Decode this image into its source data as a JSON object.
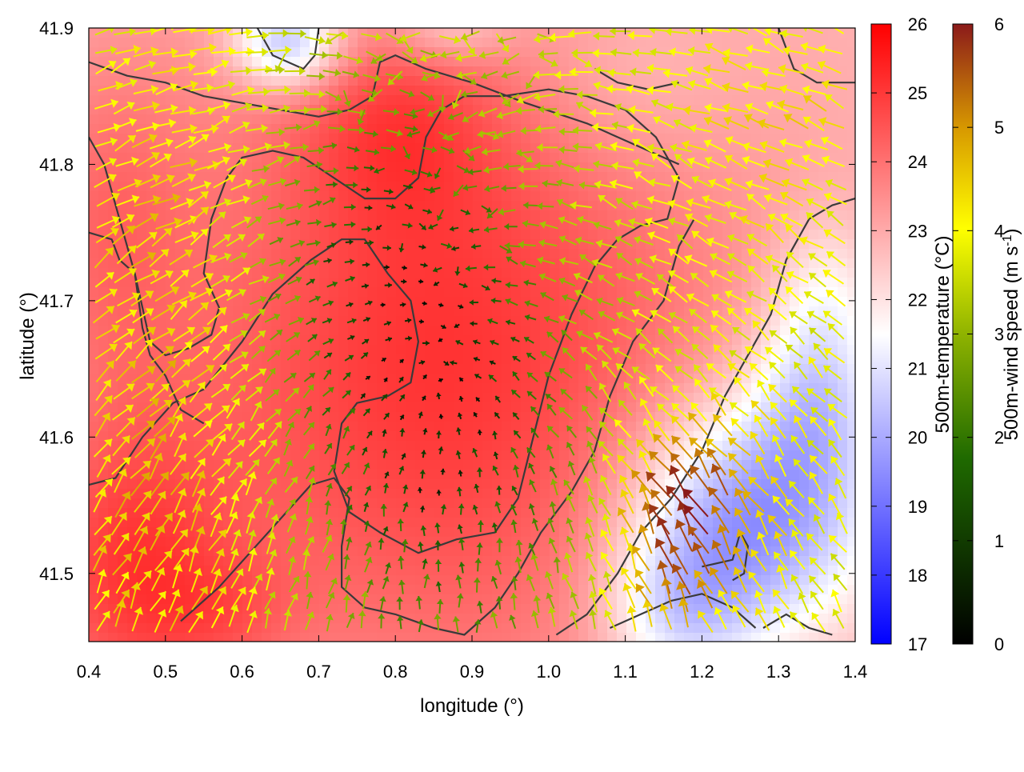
{
  "chart_data": {
    "type": "heatmap",
    "title": "",
    "xlabel": "longitude (°)",
    "ylabel": "latitude (°)",
    "xlim": [
      0.4,
      1.4
    ],
    "ylim": [
      41.45,
      41.9
    ],
    "x_ticks": [
      "0.4",
      "0.5",
      "0.6",
      "0.7",
      "0.8",
      "0.9",
      "1.0",
      "1.1",
      "1.2",
      "1.3",
      "1.4"
    ],
    "y_ticks": [
      "41.5",
      "41.6",
      "41.7",
      "41.8",
      "41.9"
    ],
    "x_tick_values": [
      0.4,
      0.5,
      0.6,
      0.7,
      0.8,
      0.9,
      1.0,
      1.1,
      1.2,
      1.3,
      1.4
    ],
    "y_tick_values": [
      41.5,
      41.6,
      41.7,
      41.8,
      41.9
    ],
    "temperature_colorbar": {
      "label": "500m-temperature (°C)",
      "range": [
        17,
        26
      ],
      "ticks": [
        "17",
        "18",
        "19",
        "20",
        "21",
        "22",
        "23",
        "24",
        "25",
        "26"
      ],
      "tick_values": [
        17,
        18,
        19,
        20,
        21,
        22,
        23,
        24,
        25,
        26
      ],
      "colors": [
        "#0000ff",
        "#ffffff",
        "#ff0000"
      ]
    },
    "wind_colorbar": {
      "label_main": "500m-wind speed (m s",
      "label_sup": "-1",
      "label_end": ")",
      "range": [
        0,
        6
      ],
      "ticks": [
        "0",
        "1",
        "2",
        "3",
        "4",
        "5",
        "6"
      ],
      "tick_values": [
        0,
        1,
        2,
        3,
        4,
        5,
        6
      ],
      "colors": [
        "#000000",
        "#1f6a00",
        "#8fb300",
        "#ffff00",
        "#d89a00",
        "#8b1a1a"
      ]
    },
    "temperature_field": {
      "background": 22.8,
      "features": [
        {
          "lon": 0.86,
          "lat": 41.66,
          "sx": 0.26,
          "sy": 0.18,
          "amp": 2.3
        },
        {
          "lon": 0.45,
          "lat": 41.5,
          "sx": 0.1,
          "sy": 0.08,
          "amp": 1.8
        },
        {
          "lon": 0.42,
          "lat": 41.76,
          "sx": 0.08,
          "sy": 0.09,
          "amp": 1.0
        },
        {
          "lon": 0.8,
          "lat": 41.83,
          "sx": 0.09,
          "sy": 0.05,
          "amp": 0.9
        },
        {
          "lon": 1.26,
          "lat": 41.54,
          "sx": 0.11,
          "sy": 0.06,
          "amp": -3.6
        },
        {
          "lon": 1.35,
          "lat": 41.63,
          "sx": 0.06,
          "sy": 0.05,
          "amp": -2.0
        },
        {
          "lon": 1.17,
          "lat": 41.47,
          "sx": 0.07,
          "sy": 0.04,
          "amp": -1.8
        },
        {
          "lon": 0.66,
          "lat": 41.89,
          "sx": 0.05,
          "sy": 0.025,
          "amp": -3.0
        },
        {
          "lon": 0.87,
          "lat": 41.9,
          "sx": 0.06,
          "sy": 0.02,
          "amp": -1.2
        },
        {
          "lon": 1.36,
          "lat": 41.71,
          "sx": 0.05,
          "sy": 0.04,
          "amp": -1.0
        },
        {
          "lon": 1.1,
          "lat": 41.86,
          "sx": 0.1,
          "sy": 0.05,
          "amp": -0.6
        },
        {
          "lon": 0.58,
          "lat": 41.47,
          "sx": 0.07,
          "sy": 0.03,
          "amp": 0.6
        }
      ]
    },
    "wind_field": {
      "speed_background": 3.4,
      "speed_features": [
        {
          "lon": 0.86,
          "lat": 41.62,
          "sx": 0.13,
          "sy": 0.14,
          "amp": -3.0
        },
        {
          "lon": 0.73,
          "lat": 41.74,
          "sx": 0.09,
          "sy": 0.08,
          "amp": -1.2
        },
        {
          "lon": 1.17,
          "lat": 41.52,
          "sx": 0.05,
          "sy": 0.05,
          "amp": 2.4
        },
        {
          "lon": 1.25,
          "lat": 41.55,
          "sx": 0.05,
          "sy": 0.04,
          "amp": 1.2
        },
        {
          "lon": 0.48,
          "lat": 41.55,
          "sx": 0.09,
          "sy": 0.1,
          "amp": 0.9
        },
        {
          "lon": 0.48,
          "lat": 41.76,
          "sx": 0.06,
          "sy": 0.08,
          "amp": 0.7
        },
        {
          "lon": 1.3,
          "lat": 41.83,
          "sx": 0.08,
          "sy": 0.06,
          "amp": 0.6
        }
      ],
      "convergence_center": {
        "lon": 0.86,
        "lat": 41.64
      }
    },
    "contours": [
      [
        [
          0.4,
          41.565
        ],
        [
          0.435,
          41.57
        ],
        [
          0.47,
          41.6
        ],
        [
          0.51,
          41.625
        ],
        [
          0.55,
          41.635
        ],
        [
          0.6,
          41.67
        ],
        [
          0.64,
          41.705
        ],
        [
          0.69,
          41.73
        ],
        [
          0.73,
          41.745
        ],
        [
          0.76,
          41.745
        ],
        [
          0.79,
          41.72
        ],
        [
          0.82,
          41.7
        ],
        [
          0.83,
          41.67
        ],
        [
          0.82,
          41.64
        ],
        [
          0.79,
          41.63
        ],
        [
          0.75,
          41.625
        ],
        [
          0.73,
          41.61
        ],
        [
          0.72,
          41.575
        ],
        [
          0.74,
          41.545
        ],
        [
          0.78,
          41.53
        ],
        [
          0.83,
          41.515
        ],
        [
          0.88,
          41.525
        ],
        [
          0.93,
          41.53
        ],
        [
          0.96,
          41.555
        ],
        [
          0.98,
          41.6
        ],
        [
          1.0,
          41.645
        ],
        [
          1.03,
          41.69
        ],
        [
          1.06,
          41.725
        ],
        [
          1.09,
          41.745
        ],
        [
          1.12,
          41.755
        ],
        [
          1.155,
          41.76
        ],
        [
          1.17,
          41.79
        ],
        [
          1.14,
          41.82
        ],
        [
          1.1,
          41.84
        ],
        [
          1.05,
          41.85
        ],
        [
          1.0,
          41.855
        ],
        [
          0.94,
          41.85
        ],
        [
          0.89,
          41.85
        ],
        [
          0.86,
          41.84
        ],
        [
          0.84,
          41.82
        ],
        [
          0.83,
          41.79
        ],
        [
          0.8,
          41.775
        ],
        [
          0.76,
          41.775
        ],
        [
          0.72,
          41.79
        ],
        [
          0.68,
          41.805
        ],
        [
          0.64,
          41.81
        ],
        [
          0.6,
          41.805
        ],
        [
          0.58,
          41.79
        ],
        [
          0.56,
          41.76
        ],
        [
          0.55,
          41.72
        ],
        [
          0.57,
          41.695
        ],
        [
          0.56,
          41.675
        ],
        [
          0.53,
          41.665
        ],
        [
          0.5,
          41.66
        ],
        [
          0.48,
          41.67
        ],
        [
          0.46,
          41.72
        ],
        [
          0.44,
          41.76
        ],
        [
          0.42,
          41.8
        ],
        [
          0.4,
          41.82
        ]
      ],
      [
        [
          0.52,
          41.465
        ],
        [
          0.57,
          41.49
        ],
        [
          0.61,
          41.515
        ],
        [
          0.65,
          41.54
        ],
        [
          0.69,
          41.565
        ],
        [
          0.72,
          41.57
        ],
        [
          0.74,
          41.555
        ],
        [
          0.73,
          41.52
        ],
        [
          0.73,
          41.49
        ],
        [
          0.76,
          41.475
        ],
        [
          0.8,
          41.47
        ],
        [
          0.85,
          41.46
        ],
        [
          0.89,
          41.455
        ],
        [
          0.93,
          41.475
        ],
        [
          0.96,
          41.5
        ],
        [
          0.99,
          41.53
        ],
        [
          1.03,
          41.56
        ],
        [
          1.06,
          41.59
        ],
        [
          1.08,
          41.63
        ],
        [
          1.11,
          41.67
        ],
        [
          1.15,
          41.7
        ],
        [
          1.17,
          41.74
        ],
        [
          1.19,
          41.76
        ]
      ],
      [
        [
          0.4,
          41.875
        ],
        [
          0.45,
          41.865
        ],
        [
          0.5,
          41.86
        ],
        [
          0.55,
          41.85
        ],
        [
          0.6,
          41.845
        ],
        [
          0.65,
          41.84
        ],
        [
          0.7,
          41.835
        ],
        [
          0.74,
          41.84
        ],
        [
          0.77,
          41.85
        ],
        [
          0.78,
          41.875
        ],
        [
          0.8,
          41.88
        ],
        [
          0.84,
          41.87
        ],
        [
          0.9,
          41.86
        ],
        [
          0.97,
          41.845
        ],
        [
          1.05,
          41.83
        ],
        [
          1.11,
          41.815
        ],
        [
          1.17,
          41.8
        ]
      ],
      [
        [
          0.62,
          41.9
        ],
        [
          0.64,
          41.88
        ],
        [
          0.68,
          41.87
        ],
        [
          0.695,
          41.88
        ],
        [
          0.7,
          41.9
        ]
      ],
      [
        [
          0.4,
          41.75
        ],
        [
          0.43,
          41.745
        ],
        [
          0.44,
          41.73
        ],
        [
          0.46,
          41.72
        ],
        [
          0.47,
          41.68
        ],
        [
          0.48,
          41.66
        ],
        [
          0.5,
          41.645
        ],
        [
          0.52,
          41.62
        ],
        [
          0.55,
          41.61
        ]
      ],
      [
        [
          1.01,
          41.455
        ],
        [
          1.05,
          41.47
        ],
        [
          1.09,
          41.5
        ],
        [
          1.12,
          41.53
        ],
        [
          1.16,
          41.555
        ],
        [
          1.2,
          41.59
        ],
        [
          1.23,
          41.63
        ],
        [
          1.26,
          41.66
        ],
        [
          1.29,
          41.69
        ],
        [
          1.31,
          41.73
        ],
        [
          1.34,
          41.76
        ],
        [
          1.37,
          41.77
        ],
        [
          1.4,
          41.775
        ]
      ],
      [
        [
          1.08,
          41.46
        ],
        [
          1.12,
          41.47
        ],
        [
          1.16,
          41.48
        ],
        [
          1.2,
          41.485
        ],
        [
          1.24,
          41.475
        ],
        [
          1.27,
          41.46
        ]
      ],
      [
        [
          1.2,
          41.505
        ],
        [
          1.24,
          41.51
        ],
        [
          1.25,
          41.53
        ],
        [
          1.26,
          41.52
        ],
        [
          1.255,
          41.5
        ],
        [
          1.24,
          41.495
        ]
      ],
      [
        [
          1.28,
          41.46
        ],
        [
          1.31,
          41.47
        ],
        [
          1.34,
          41.46
        ],
        [
          1.37,
          41.455
        ]
      ],
      [
        [
          1.06,
          41.87
        ],
        [
          1.09,
          41.86
        ],
        [
          1.13,
          41.855
        ],
        [
          1.17,
          41.86
        ]
      ],
      [
        [
          1.3,
          41.9
        ],
        [
          1.32,
          41.87
        ],
        [
          1.35,
          41.86
        ],
        [
          1.4,
          41.86
        ]
      ]
    ]
  }
}
